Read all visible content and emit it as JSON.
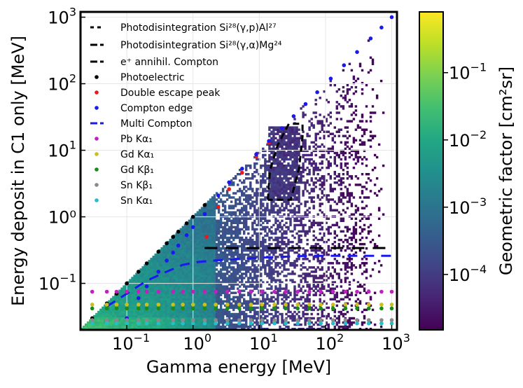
{
  "chart_data": {
    "type": "heatmap",
    "xlabel": "Gamma energy [MeV]",
    "ylabel": "Energy deposit in C1 only [MeV]",
    "colorbar_label": "Geometric factor [cm²sr]",
    "xscale": "log",
    "yscale": "log",
    "xlim": [
      0.02,
      1200
    ],
    "ylim": [
      0.02,
      1200
    ],
    "x_ticks": [
      {
        "value": 0.1,
        "base": "10",
        "exp": "−1"
      },
      {
        "value": 1,
        "base": "10",
        "exp": "0"
      },
      {
        "value": 10,
        "base": "10",
        "exp": "1"
      },
      {
        "value": 100,
        "base": "10",
        "exp": "2"
      },
      {
        "value": 1000,
        "base": "10",
        "exp": "3"
      }
    ],
    "y_ticks": [
      {
        "value": 0.1,
        "base": "10",
        "exp": "−1",
        "text": ""
      },
      {
        "value": 1,
        "base": "",
        "exp": "",
        "text": "10⁰"
      },
      {
        "value": 10,
        "base": "10",
        "exp": "1",
        "text": ""
      },
      {
        "value": 100,
        "base": "10",
        "exp": "2",
        "text": ""
      },
      {
        "value": 1000,
        "base": "10",
        "exp": "3",
        "text": ""
      }
    ],
    "colorbar": {
      "scale": "log",
      "range": [
        1.5e-05,
        0.8
      ],
      "colormap": "viridis",
      "ticks": [
        {
          "value": 0.1,
          "base": "10",
          "exp": "−1"
        },
        {
          "value": 0.01,
          "base": "10",
          "exp": "−2"
        },
        {
          "value": 0.001,
          "base": "10",
          "exp": "−3"
        },
        {
          "value": 0.0001,
          "base": "10",
          "exp": "−4"
        }
      ]
    },
    "grid": true,
    "legend_position": "top-left",
    "legend": [
      {
        "label": "Photodisintegration Si²⁸(γ,p)Al²⁷",
        "marker": "dash",
        "color": "#000000"
      },
      {
        "label": "Photodisintegration Si²⁸(γ,α)Mg²⁴",
        "marker": "dash",
        "color": "#000000"
      },
      {
        "label": "e⁺ annihil. Compton",
        "marker": "dash",
        "color": "#000000"
      },
      {
        "label": "Photoelectric",
        "marker": "dot",
        "color": "#000000"
      },
      {
        "label": "Double escape peak",
        "marker": "dot",
        "color": "#e8191b"
      },
      {
        "label": "Compton edge",
        "marker": "dot",
        "color": "#1a1aee"
      },
      {
        "label": "Multi Compton",
        "marker": "dash",
        "color": "#1a1aee"
      },
      {
        "label": "Pb Kα₁",
        "marker": "dot",
        "color": "#c020c0"
      },
      {
        "label": "Gd Kα₁",
        "marker": "dot",
        "color": "#c8c020"
      },
      {
        "label": "Gd Kβ₁",
        "marker": "dot",
        "color": "#1a8a1a"
      },
      {
        "label": "Sn Kβ₁",
        "marker": "dot",
        "color": "#8a8a8a"
      },
      {
        "label": "Sn Kα₁",
        "marker": "dot",
        "color": "#20c0c8"
      }
    ],
    "series": [
      {
        "name": "Photoelectric",
        "style": "points",
        "x": [
          0.03,
          0.05,
          0.07,
          0.1,
          0.15,
          0.2,
          0.3,
          0.4,
          0.5,
          0.6,
          0.8,
          1.0,
          1.5
        ],
        "y": [
          0.03,
          0.05,
          0.07,
          0.1,
          0.15,
          0.2,
          0.3,
          0.4,
          0.5,
          0.6,
          0.8,
          1.0,
          1.5
        ]
      },
      {
        "name": "Double escape peak",
        "style": "points",
        "x": [
          1.6,
          2.4,
          3.5,
          5.5,
          9.0,
          14.0
        ],
        "y": [
          0.5,
          1.4,
          2.6,
          4.6,
          8.0,
          13.0
        ]
      },
      {
        "name": "Compton edge",
        "style": "points",
        "x": [
          0.1,
          0.15,
          0.2,
          0.3,
          0.4,
          0.5,
          0.6,
          0.8,
          1.0,
          1.5,
          2.4,
          3.5,
          5.5,
          9.0,
          14.0,
          22,
          33,
          50,
          75,
          120,
          190,
          300,
          480,
          700,
          1000
        ],
        "y": [
          0.03,
          0.06,
          0.09,
          0.15,
          0.22,
          0.29,
          0.37,
          0.53,
          0.7,
          1.1,
          2.1,
          3.3,
          5.3,
          8.7,
          13.8,
          21.5,
          32.5,
          49.5,
          74.5,
          119.5,
          189.5,
          299.5,
          479.5,
          699.5,
          999.5
        ]
      },
      {
        "name": "Multi Compton",
        "style": "dashed-line",
        "x": [
          0.05,
          0.1,
          0.2,
          0.4,
          0.7,
          1.2,
          2,
          4,
          8,
          20,
          60,
          200,
          1000
        ],
        "y": [
          0.045,
          0.07,
          0.11,
          0.15,
          0.19,
          0.21,
          0.22,
          0.23,
          0.24,
          0.25,
          0.26,
          0.26,
          0.26
        ]
      },
      {
        "name": "e⁺ annihil. Compton",
        "style": "dashed-line",
        "x": [
          1.5,
          1000
        ],
        "y": [
          0.34,
          0.34
        ]
      },
      {
        "name": "Photodisintegration region",
        "style": "dashed-polygon",
        "x": [
          13.5,
          14.5,
          19,
          28,
          45,
          45,
          40,
          30,
          20,
          16,
          13.5
        ],
        "y": [
          1.8,
          5,
          12,
          25,
          25,
          16,
          5.5,
          1.8,
          1.8,
          1.8,
          1.8
        ]
      },
      {
        "name": "Pb Kα₁",
        "style": "points-row",
        "y": 0.075,
        "x": [
          0.03,
          0.05,
          0.07,
          0.1,
          0.15,
          0.2,
          0.3,
          0.5,
          0.7,
          1,
          1.5,
          2.2,
          3.3,
          5,
          7.5,
          11,
          17,
          25,
          38,
          57,
          85,
          130,
          200,
          300,
          450,
          700,
          1000
        ]
      },
      {
        "name": "Gd Kα₁",
        "style": "points-row",
        "y": 0.048,
        "x": [
          0.03,
          0.05,
          0.07,
          0.1,
          0.15,
          0.2,
          0.3,
          0.5,
          0.7,
          1,
          1.5,
          2.2,
          3.3,
          5,
          7.5,
          11,
          17,
          25,
          38,
          57,
          85,
          130,
          200,
          300,
          450,
          700,
          1000
        ]
      },
      {
        "name": "Gd Kβ₁",
        "style": "points-row",
        "y": 0.042,
        "x": [
          0.03,
          0.05,
          0.07,
          0.1,
          0.15,
          0.2,
          0.3,
          0.5,
          0.7,
          1,
          1.5,
          2.2,
          3.3,
          5,
          7.5,
          11,
          17,
          25,
          38,
          57,
          85,
          130,
          200,
          300,
          450,
          700,
          1000
        ]
      },
      {
        "name": "Sn Kβ₁",
        "style": "points-row",
        "y": 0.028,
        "x": [
          0.03,
          0.05,
          0.07,
          0.1,
          0.15,
          0.2,
          0.3,
          0.5,
          0.7,
          1,
          1.5,
          2.2,
          3.3,
          5,
          7.5,
          11,
          17,
          25,
          38,
          57,
          85,
          130,
          200,
          300,
          450,
          700,
          1000
        ]
      },
      {
        "name": "Sn Kα₁",
        "style": "points-row",
        "y": 0.025,
        "x": [
          0.03,
          0.05,
          0.07,
          0.1,
          0.15,
          0.2,
          0.3,
          0.5,
          0.7,
          1,
          1.5,
          2.2,
          3.3,
          5,
          7.5,
          11,
          17,
          25,
          38,
          57,
          85,
          130,
          200,
          300,
          450,
          700,
          1000
        ]
      }
    ]
  }
}
